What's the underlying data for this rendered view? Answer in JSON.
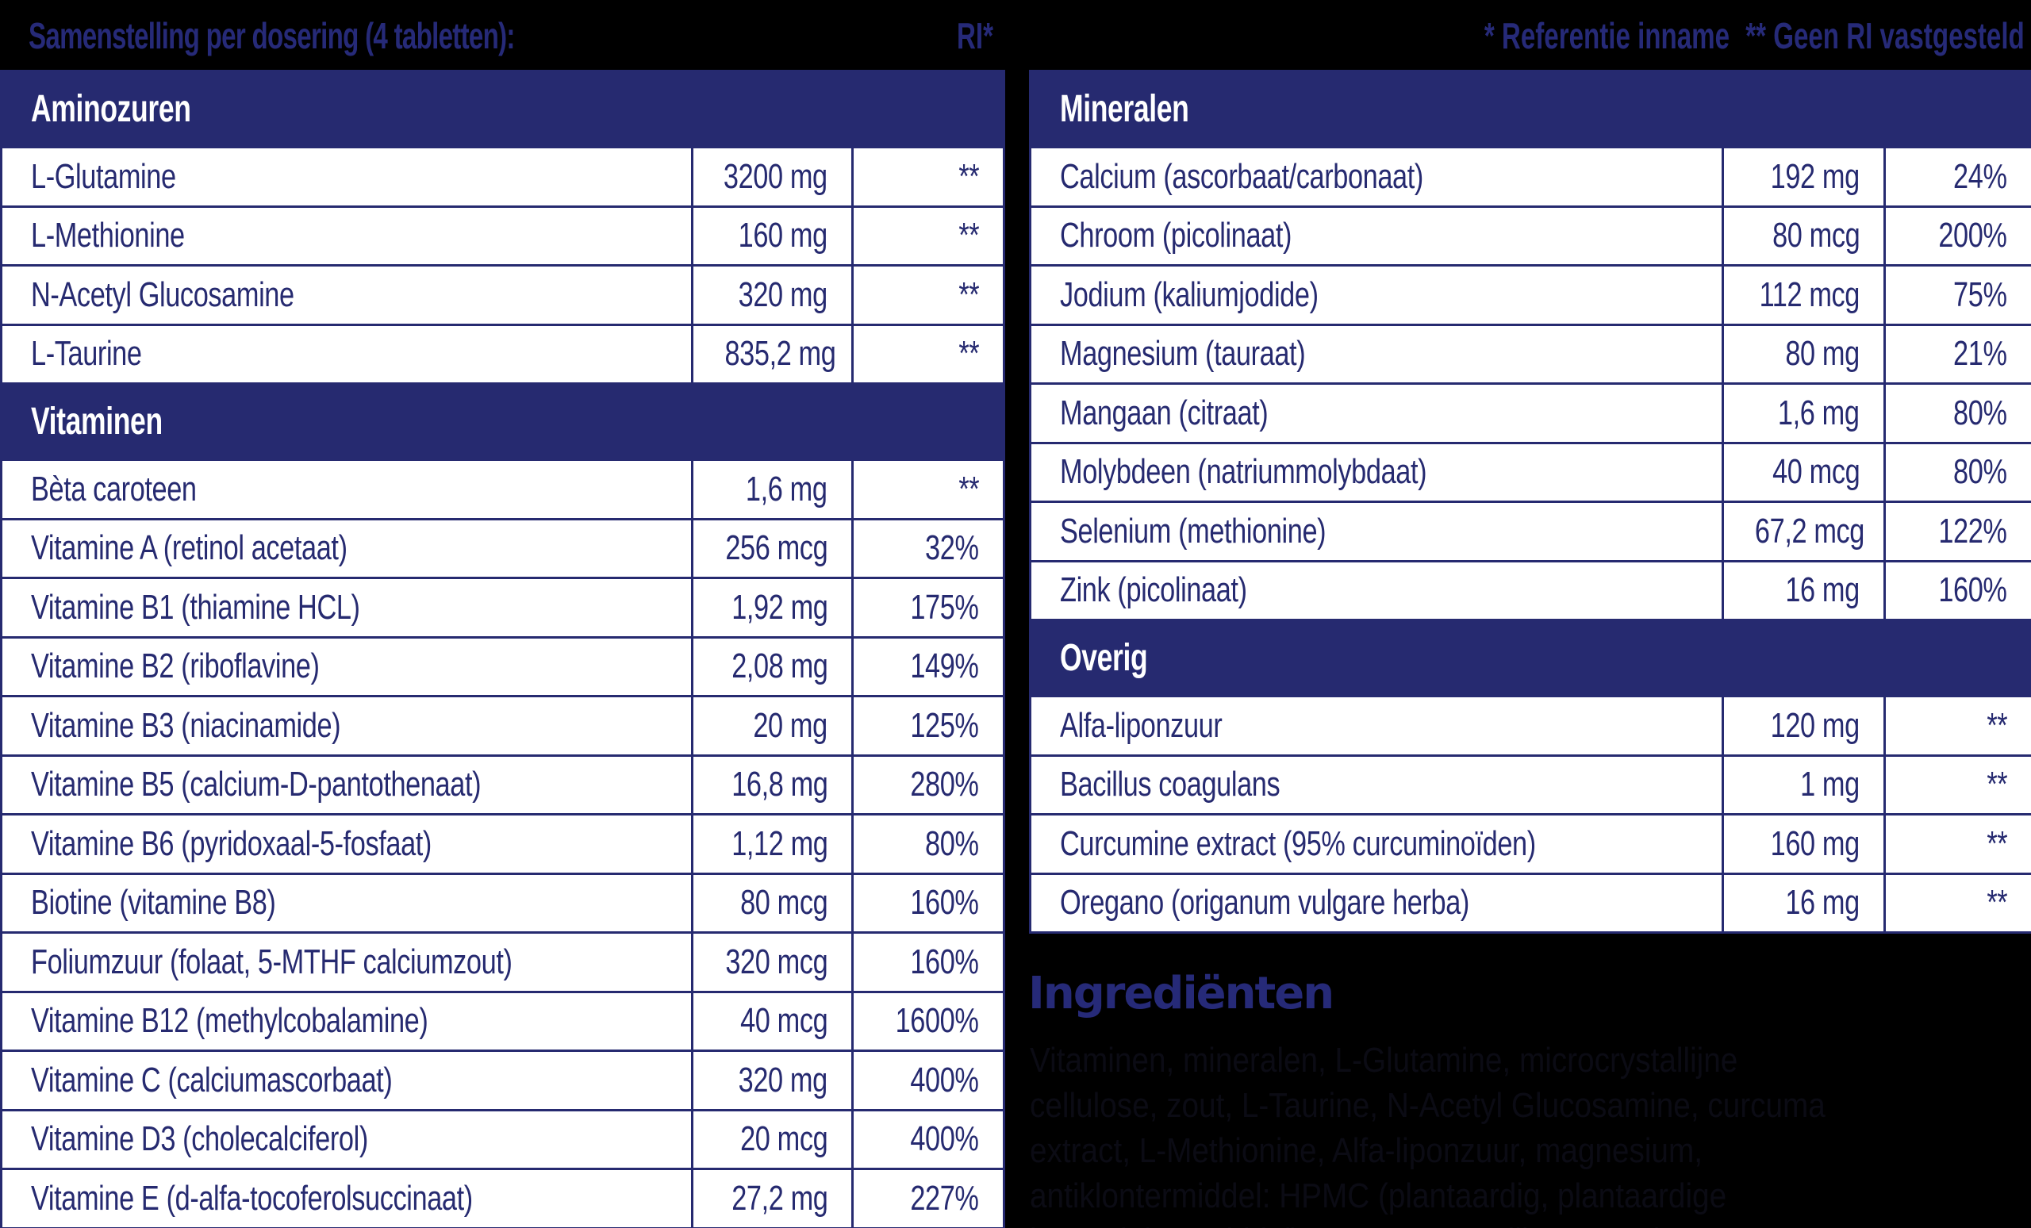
{
  "header": {
    "title": "Samenstelling per dosering (4 tabletten):",
    "ri_label": "RI*",
    "legend_ri": "* Referentie inname",
    "legend_no_ri": "** Geen RI vastgesteld"
  },
  "colors": {
    "navy": "#262a70",
    "background": "#000000",
    "row_bg": "#ffffff"
  },
  "left_table": {
    "sections": [
      {
        "title": "Aminozuren",
        "rows": [
          {
            "name": "L-Glutamine",
            "amount": "3200 mg",
            "ri": "**"
          },
          {
            "name": "L-Methionine",
            "amount": "160 mg",
            "ri": "**"
          },
          {
            "name": "N-Acetyl Glucosamine",
            "amount": "320 mg",
            "ri": "**"
          },
          {
            "name": "L-Taurine",
            "amount": "835,2 mg",
            "ri": "**"
          }
        ]
      },
      {
        "title": "Vitaminen",
        "rows": [
          {
            "name": "Bèta caroteen",
            "amount": "1,6 mg",
            "ri": "**"
          },
          {
            "name": "Vitamine A (retinol acetaat)",
            "amount": "256 mcg",
            "ri": "32%"
          },
          {
            "name": "Vitamine B1 (thiamine HCL)",
            "amount": "1,92 mg",
            "ri": "175%"
          },
          {
            "name": "Vitamine B2 (riboflavine)",
            "amount": "2,08 mg",
            "ri": "149%"
          },
          {
            "name": "Vitamine B3 (niacinamide)",
            "amount": "20 mg",
            "ri": "125%"
          },
          {
            "name": "Vitamine B5 (calcium-D-pantothenaat)",
            "amount": "16,8 mg",
            "ri": "280%"
          },
          {
            "name": "Vitamine B6 (pyridoxaal-5-fosfaat)",
            "amount": "1,12 mg",
            "ri": "80%"
          },
          {
            "name": "Biotine (vitamine B8)",
            "amount": "80 mcg",
            "ri": "160%"
          },
          {
            "name": "Foliumzuur (folaat, 5-MTHF calciumzout)",
            "amount": "320 mcg",
            "ri": "160%"
          },
          {
            "name": "Vitamine B12 (methylcobalamine)",
            "amount": "40 mcg",
            "ri": "1600%"
          },
          {
            "name": "Vitamine C (calciumascorbaat)",
            "amount": "320 mg",
            "ri": "400%"
          },
          {
            "name": "Vitamine D3 (cholecalciferol)",
            "amount": "20 mcg",
            "ri": "400%"
          },
          {
            "name": "Vitamine E (d-alfa-tocoferolsuccinaat)",
            "amount": "27,2 mg",
            "ri": "227%"
          }
        ]
      }
    ]
  },
  "right_table": {
    "sections": [
      {
        "title": "Mineralen",
        "rows": [
          {
            "name": "Calcium (ascorbaat/carbonaat)",
            "amount": "192 mg",
            "ri": "24%"
          },
          {
            "name": "Chroom (picolinaat)",
            "amount": "80 mcg",
            "ri": "200%"
          },
          {
            "name": "Jodium (kaliumjodide)",
            "amount": "112 mcg",
            "ri": "75%"
          },
          {
            "name": "Magnesium (tauraat)",
            "amount": "80 mg",
            "ri": "21%"
          },
          {
            "name": "Mangaan (citraat)",
            "amount": "1,6 mg",
            "ri": "80%"
          },
          {
            "name": "Molybdeen (natriummolybdaat)",
            "amount": "40 mcg",
            "ri": "80%"
          },
          {
            "name": "Selenium (methionine)",
            "amount": "67,2 mcg",
            "ri": "122%"
          },
          {
            "name": "Zink (picolinaat)",
            "amount": "16 mg",
            "ri": "160%"
          }
        ]
      },
      {
        "title": "Overig",
        "rows": [
          {
            "name": "Alfa-liponzuur",
            "amount": "120 mg",
            "ri": "**"
          },
          {
            "name": "Bacillus coagulans",
            "amount": "1 mg",
            "ri": "**"
          },
          {
            "name": "Curcumine extract (95% curcuminoïden)",
            "amount": "160 mg",
            "ri": "**"
          },
          {
            "name": "Oregano (origanum vulgare herba)",
            "amount": "16 mg",
            "ri": "**"
          }
        ]
      }
    ]
  },
  "ingredients": {
    "title": "Ingrediënten",
    "text": "Vitaminen, mineralen, L-Glutamine, microcrystallijne cellulose, zout, L-Taurine, N-Acetyl Glucosamine, curcuma extract, L-Methionine, Alfa-liponzuur, magnesium, antiklontermiddel: HPMC (plantaardig, plantaardige bevestigingsmiddel), Oregano, Bacillus coagulans."
  }
}
